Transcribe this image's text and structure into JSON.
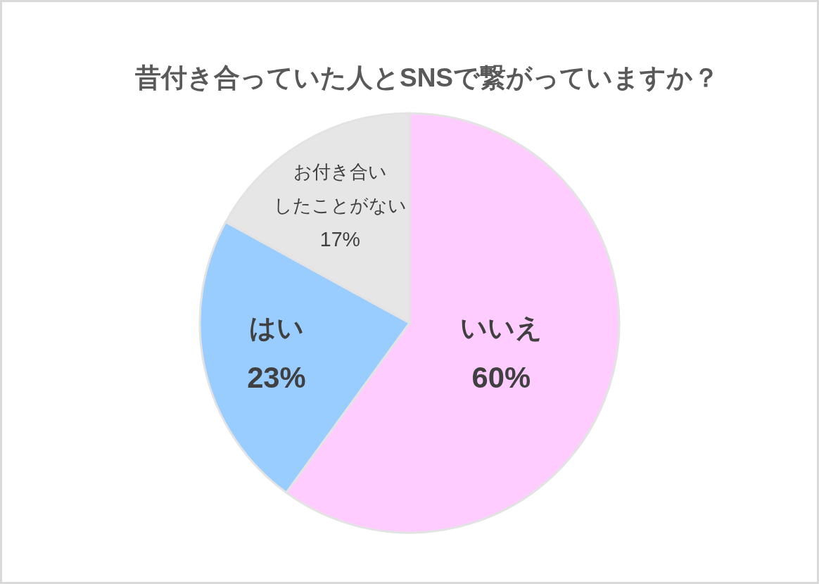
{
  "chart_data": {
    "type": "pie",
    "title": "昔付き合っていた人とSNSで繋がっていますか？",
    "categories": [
      "いいえ",
      "はい",
      "お付き合いしたことがない"
    ],
    "values": [
      60,
      23,
      17
    ],
    "colors": [
      "#ffccff",
      "#99ccff",
      "#e6e6e6"
    ],
    "value_labels": [
      "60%",
      "23%",
      "17%"
    ]
  }
}
